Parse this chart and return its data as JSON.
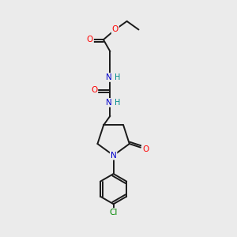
{
  "background_color": "#ebebeb",
  "bond_color": "#1a1a1a",
  "atom_colors": {
    "O": "#ff0000",
    "N": "#0000cc",
    "H": "#008b8b",
    "Cl": "#008800",
    "C": "#1a1a1a"
  },
  "figsize": [
    3.0,
    3.0
  ],
  "dpi": 100
}
